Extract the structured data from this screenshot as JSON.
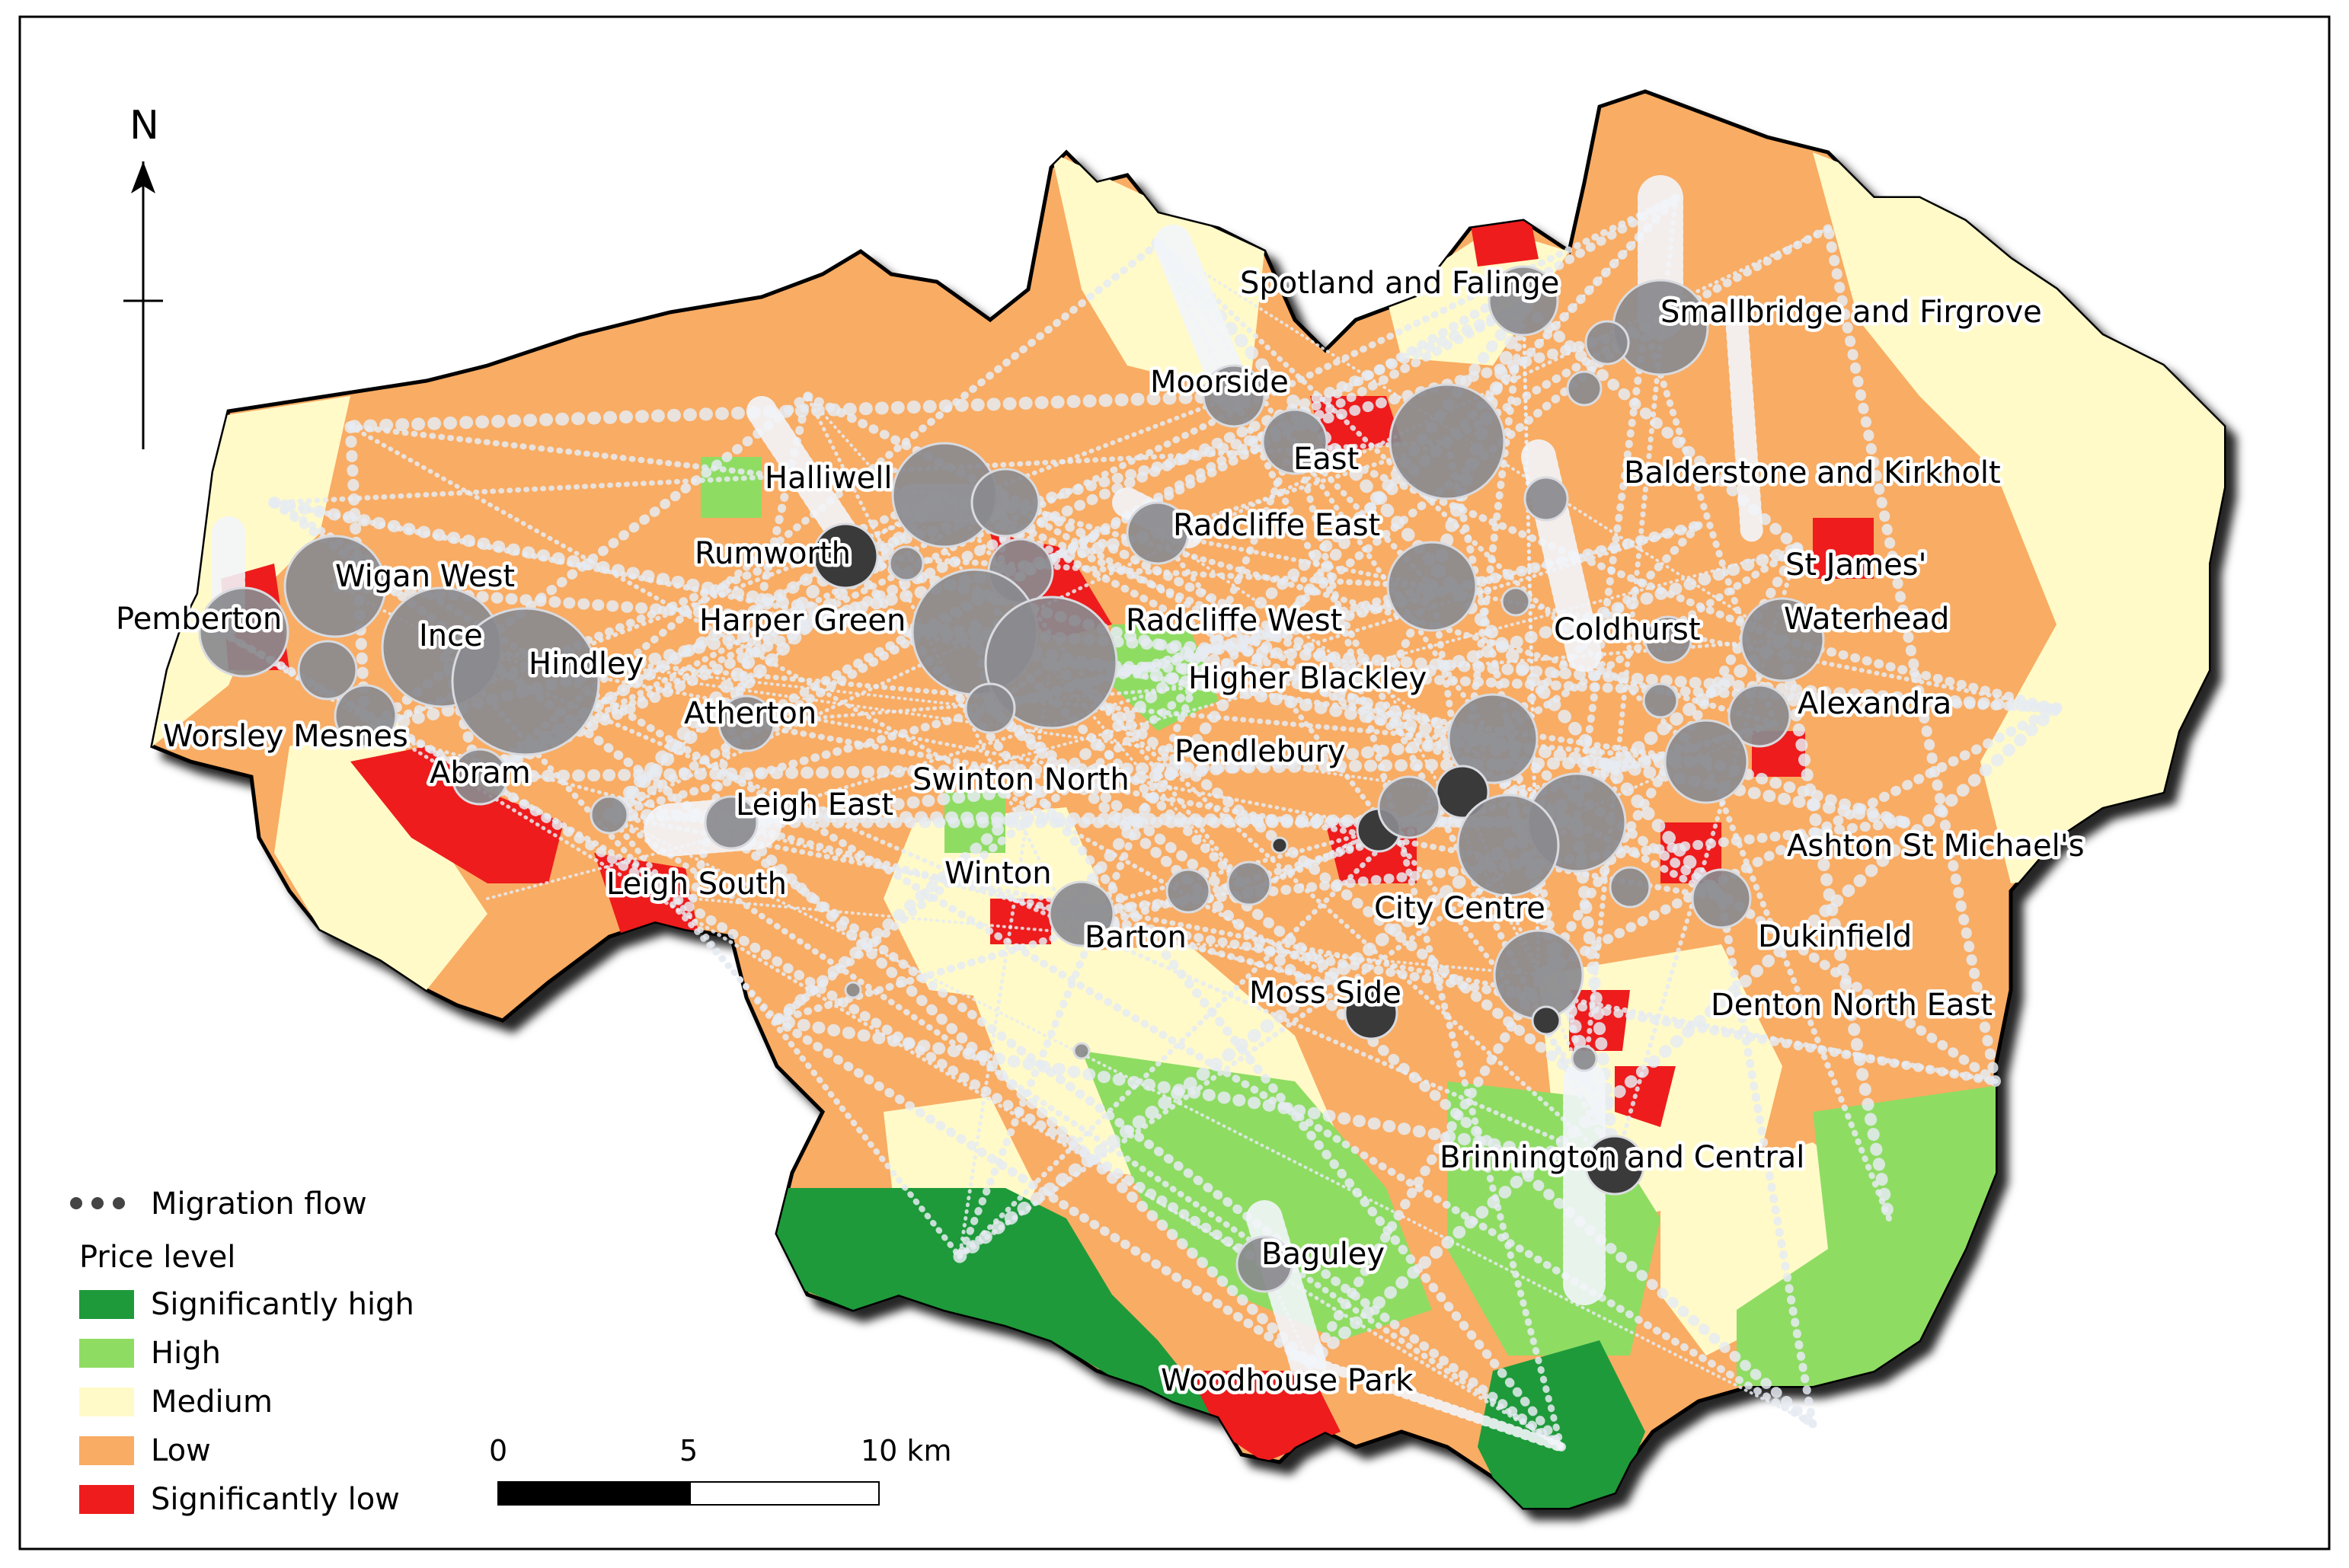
{
  "north": "N",
  "colors": {
    "significantly_high": "#1e9a3a",
    "high": "#8fdc63",
    "medium": "#fffac8",
    "low": "#f9ac64",
    "significantly_low": "#ee1c1c",
    "node": "#8a8a8e",
    "node_dark": "#3a3a3a",
    "flow": "#e6ebf2"
  },
  "legend": {
    "flow_label": "Migration flow",
    "price_title": "Price level",
    "classes": [
      {
        "label": "Significantly high",
        "color": "#1e9a3a"
      },
      {
        "label": "High",
        "color": "#8fdc63"
      },
      {
        "label": "Medium",
        "color": "#fffac8"
      },
      {
        "label": "Low",
        "color": "#f9ac64"
      },
      {
        "label": "Significantly low",
        "color": "#ee1c1c"
      }
    ]
  },
  "scalebar": {
    "ticks": [
      "0",
      "5",
      "10 km"
    ]
  },
  "places": [
    "Spotland and Falinge",
    "Smallbridge and Firgrove",
    "Moorside",
    "East",
    "Balderstone and Kirkholt",
    "Halliwell",
    "Radcliffe East",
    "Rumworth",
    "St James'",
    "Wigan West",
    "Pemberton",
    "Harper Green",
    "Radcliffe West",
    "Coldhurst",
    "Waterhead",
    "Ince",
    "Hindley",
    "Higher Blackley",
    "Alexandra",
    "Atherton",
    "Worsley Mesnes",
    "Pendlebury",
    "Abram",
    "Swinton North",
    "Leigh East",
    "Ashton St Michael's",
    "Winton",
    "Leigh South",
    "City Centre",
    "Barton",
    "Dukinfield",
    "Moss Side",
    "Denton North East",
    "Brinnington and Central",
    "Baguley",
    "Woodhouse Park"
  ]
}
